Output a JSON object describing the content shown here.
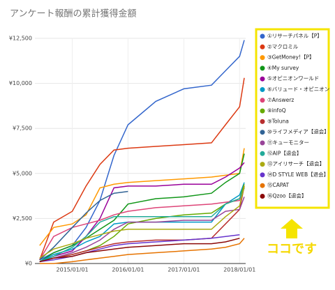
{
  "chart_data": {
    "type": "line",
    "title": "アンケート報酬の累計獲得金額",
    "annotation": "ココです",
    "x": [
      "2014/06/01",
      "2014/09/01",
      "2015/01/01",
      "2015/04/01",
      "2015/07/01",
      "2015/10/01",
      "2016/01/01",
      "2016/07/01",
      "2017/01/01",
      "2017/07/01",
      "2017/10/01",
      "2018/01/01",
      "2018/02/01"
    ],
    "xlim": [
      "2014/05/01",
      "2018/02/10"
    ],
    "xticks": [
      "2015/01/01",
      "2016/01/01",
      "2017/01/01",
      "2018/01/01"
    ],
    "ylim": [
      0,
      12500
    ],
    "yticks": [
      {
        "value": 0,
        "label": "¥0"
      },
      {
        "value": 2500,
        "label": "¥2,500"
      },
      {
        "value": 5000,
        "label": "¥5,000"
      },
      {
        "value": 7500,
        "label": "¥7,500"
      },
      {
        "value": 10000,
        "label": "¥10,000"
      },
      {
        "value": 12500,
        "label": "¥12,500"
      }
    ],
    "grid": true,
    "legend": "right",
    "series": [
      {
        "name": "①リサーチパネル【P】",
        "color": "#3366cc",
        "values": [
          200,
          600,
          1000,
          2000,
          3500,
          6000,
          7700,
          9000,
          9700,
          9900,
          10700,
          11500,
          12400
        ]
      },
      {
        "name": "②マクロミル",
        "color": "#dc3912",
        "values": [
          200,
          2300,
          2900,
          4300,
          5500,
          6300,
          6400,
          6500,
          6600,
          6700,
          7700,
          8700,
          10300
        ]
      },
      {
        "name": "③GetMoney!【P】",
        "color": "#ff9900",
        "values": [
          1000,
          2000,
          2200,
          2700,
          4200,
          4400,
          4500,
          4600,
          4700,
          4800,
          4900,
          5000,
          6400
        ]
      },
      {
        "name": "④My survey",
        "color": "#109618",
        "values": [
          100,
          600,
          1000,
          1400,
          1900,
          2400,
          3300,
          3600,
          3700,
          3900,
          4500,
          5000,
          6100
        ]
      },
      {
        "name": "⑤オピニオンワールド",
        "color": "#990099",
        "values": [
          100,
          400,
          700,
          1500,
          2500,
          4200,
          4300,
          4300,
          4400,
          4400,
          4800,
          5300,
          5600
        ]
      },
      {
        "name": "⑥バリュード・オピニオン",
        "color": "#0099c6",
        "values": [
          100,
          500,
          800,
          1200,
          1500,
          2200,
          2300,
          2300,
          2300,
          2300,
          3300,
          3800,
          4500
        ]
      },
      {
        "name": "⑦Answerz",
        "color": "#dd4477",
        "values": [
          200,
          1500,
          2000,
          2200,
          2400,
          2700,
          2900,
          3100,
          3200,
          3300,
          3400,
          3500,
          4200
        ]
      },
      {
        "name": "⑧infoQ",
        "color": "#66aa00",
        "values": [
          100,
          300,
          500,
          700,
          1000,
          1500,
          2200,
          2500,
          2700,
          2800,
          3300,
          3600,
          4400
        ]
      },
      {
        "name": "⑨Toluna",
        "color": "#b82e2e",
        "values": [
          100,
          300,
          500,
          700,
          900,
          1100,
          1200,
          1300,
          1300,
          1400,
          2200,
          3000,
          4300
        ]
      },
      {
        "name": "⑩ライフメディア【退会】",
        "color": "#316395",
        "values": [
          200,
          900,
          2000,
          2800,
          3500,
          3900,
          4000,
          null,
          null,
          null,
          null,
          null,
          null
        ]
      },
      {
        "name": "⑪キューモニター",
        "color": "#994499",
        "values": [
          100,
          300,
          600,
          900,
          1300,
          1900,
          2300,
          2300,
          2400,
          2400,
          2900,
          3000,
          3700
        ]
      },
      {
        "name": "⑫AIP【退会】",
        "color": "#22aa99",
        "values": [
          100,
          400,
          900,
          1500,
          2300,
          2600,
          2600,
          2600,
          2600,
          2600,
          3300,
          3600,
          4200
        ]
      },
      {
        "name": "⑬アイリサーチ【退会】",
        "color": "#aaaa11",
        "values": [
          300,
          800,
          1100,
          1400,
          1600,
          1800,
          1900,
          1900,
          1900,
          1900,
          2600,
          3200,
          4300
        ]
      },
      {
        "name": "⑭D STYLE WEB【退会】",
        "color": "#6633cc",
        "values": [
          100,
          200,
          400,
          600,
          800,
          1000,
          1100,
          1200,
          1300,
          1400,
          1500,
          1600,
          null
        ]
      },
      {
        "name": "⑮CAPAT",
        "color": "#e67300",
        "values": [
          0,
          0,
          100,
          200,
          300,
          400,
          500,
          600,
          700,
          800,
          900,
          1100,
          1400
        ]
      },
      {
        "name": "⑯Qzoo【退会】",
        "color": "#8b0707",
        "values": [
          100,
          300,
          400,
          600,
          700,
          800,
          900,
          1000,
          1100,
          1100,
          1200,
          1400,
          null
        ]
      }
    ]
  }
}
